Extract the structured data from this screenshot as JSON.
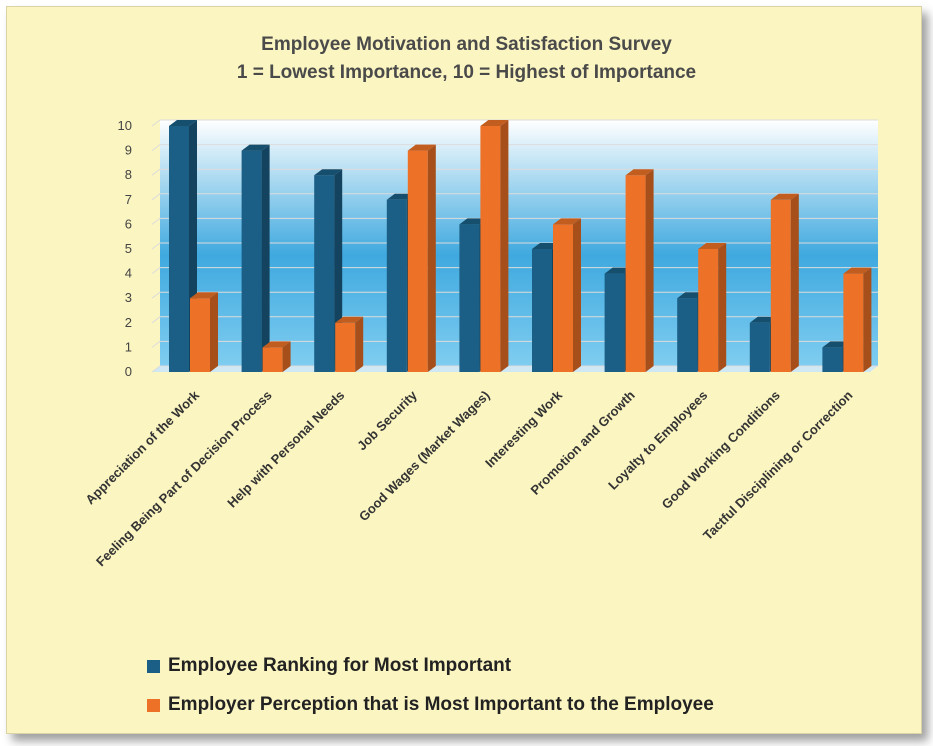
{
  "chart_data": {
    "type": "bar",
    "title": "Employee Motivation and Satisfaction Survey",
    "subtitle": "1 = Lowest Importance, 10 = Highest of Importance",
    "categories": [
      "Appreciation of the Work",
      "Feeling Being Part of Decision Process",
      "Help with Personal Needs",
      "Job Security",
      "Good Wages (Market Wages)",
      "Interesting Work",
      "Promotion and Growth",
      "Loyalty to Employees",
      "Good Working Conditions",
      "Tactful Disciplining or Correction"
    ],
    "series": [
      {
        "name": "Employee Ranking for Most Important",
        "color": "#1b5f86",
        "values": [
          10,
          9,
          8,
          7,
          6,
          5,
          4,
          3,
          2,
          1
        ]
      },
      {
        "name": "Employer Perception that is Most Important to the Employee",
        "color": "#ed7127",
        "values": [
          3,
          1,
          2,
          9,
          10,
          6,
          8,
          5,
          7,
          4
        ]
      }
    ],
    "ylim": [
      0,
      10
    ],
    "yticks": [
      0,
      1,
      2,
      3,
      4,
      5,
      6,
      7,
      8,
      9,
      10
    ],
    "grid": true,
    "legend": "bottom-left"
  }
}
